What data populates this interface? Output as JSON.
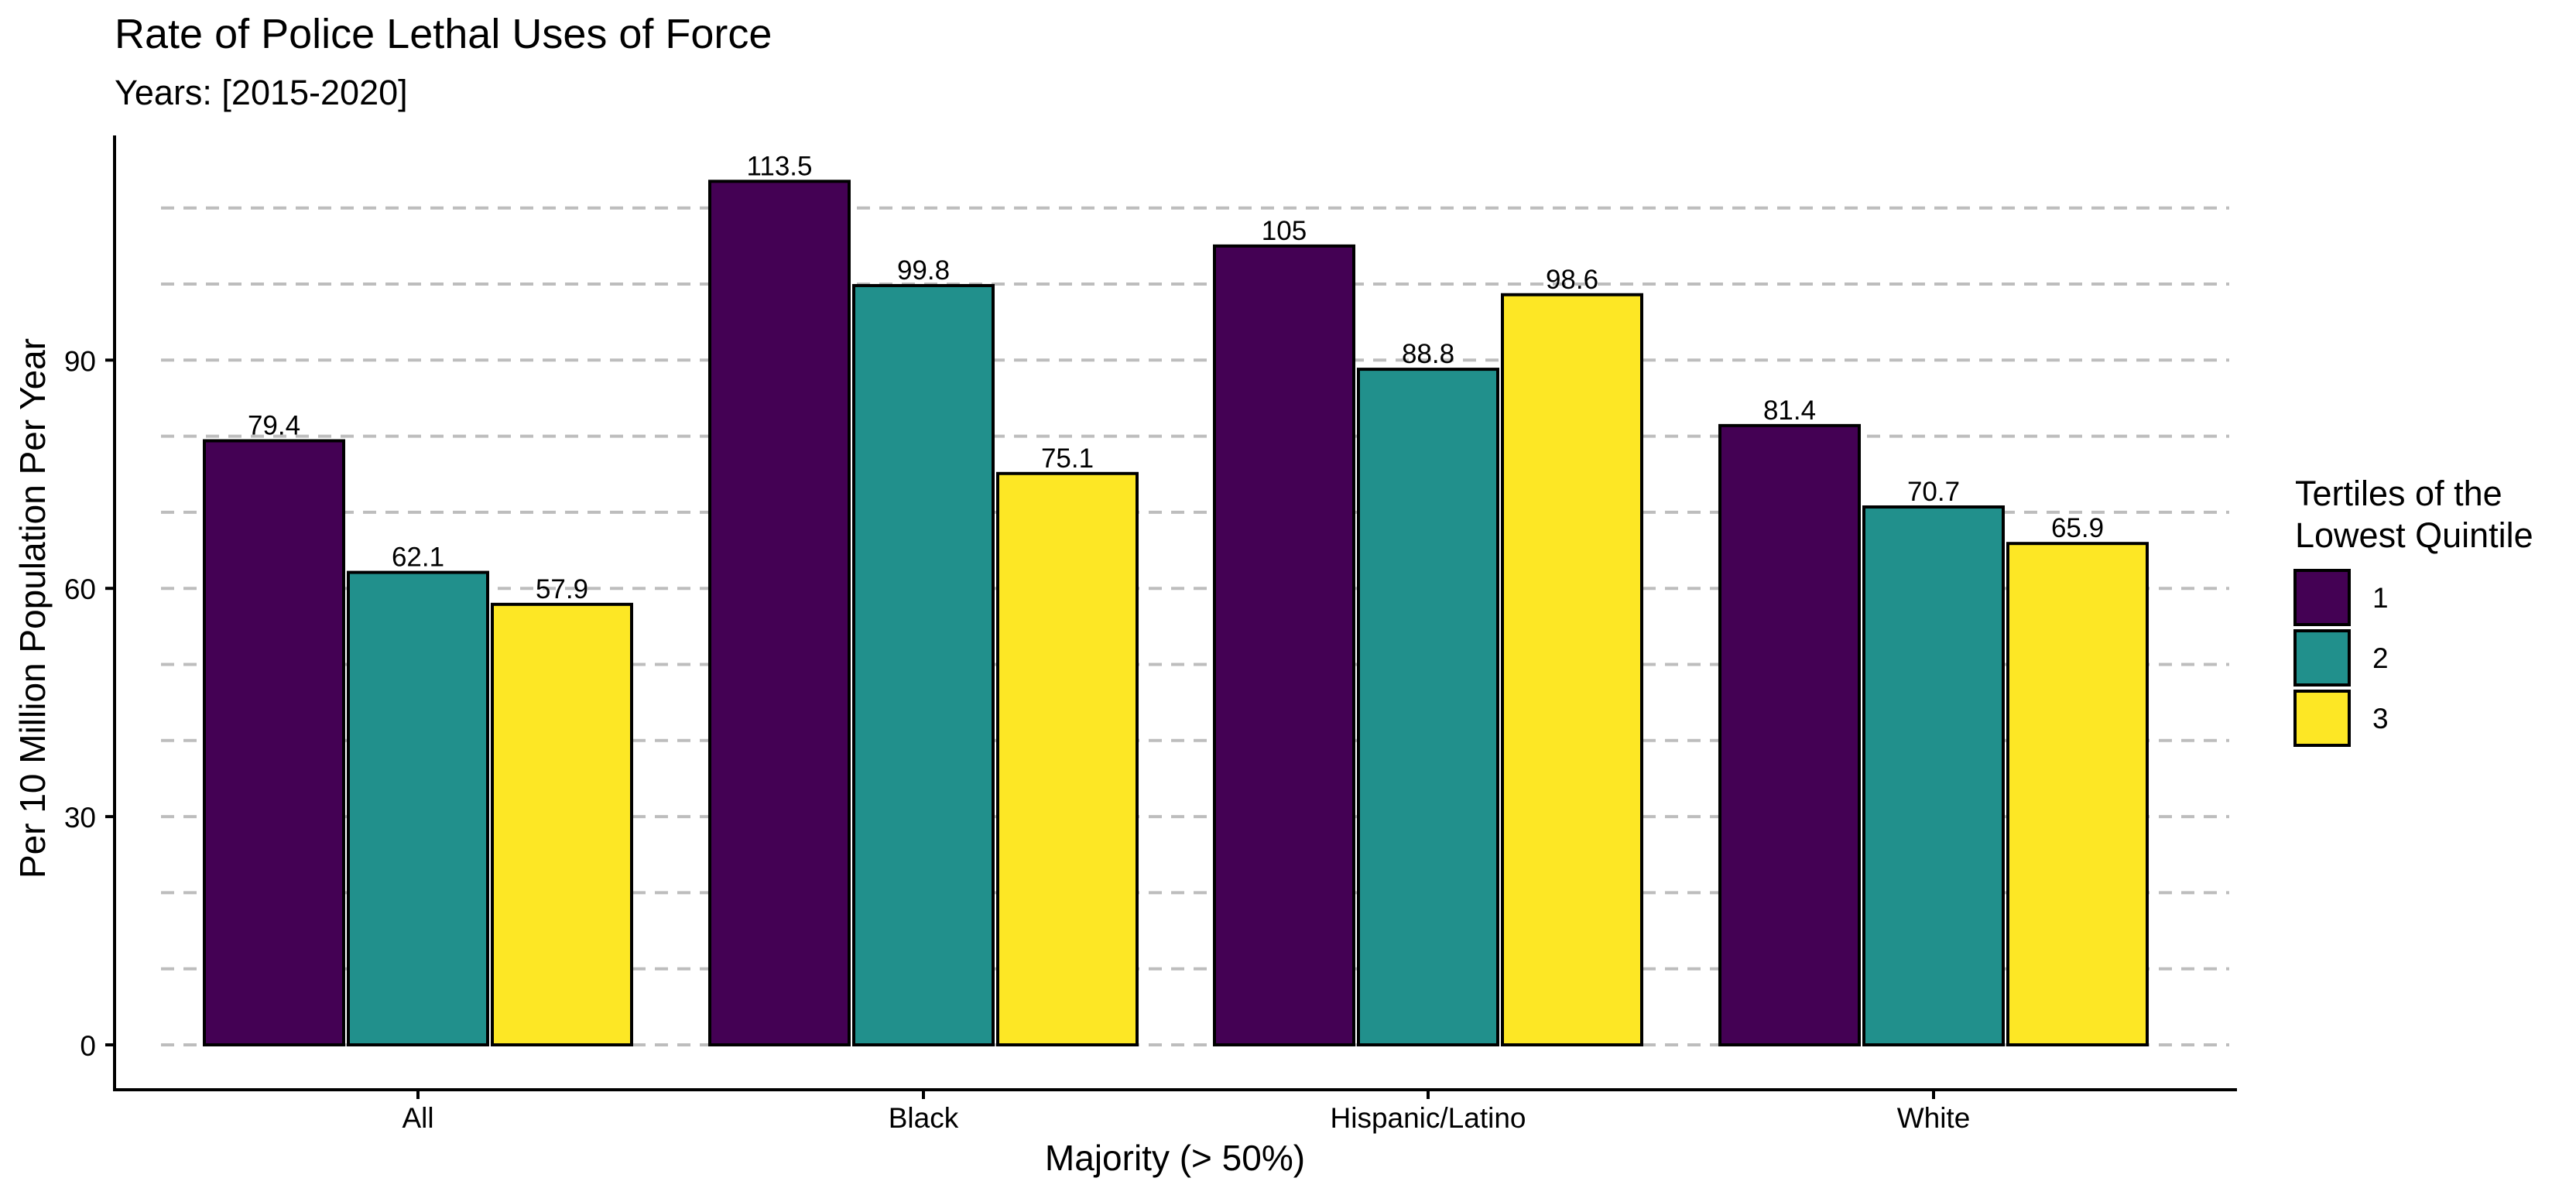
{
  "chart_data": {
    "type": "bar",
    "title": "Rate of Police Lethal Uses of Force",
    "subtitle": "Years: [2015-2020]",
    "xlabel": "Majority (> 50%)",
    "ylabel": "Per 10 Million Population Per Year",
    "ylim": [
      0,
      120
    ],
    "major_yticks": [
      0,
      30,
      60,
      90
    ],
    "minor_gridlines": [
      10,
      20,
      40,
      50,
      70,
      80,
      100,
      110
    ],
    "grid": "horizontal dashed",
    "categories": [
      "All",
      "Black",
      "Hispanic/Latino",
      "White"
    ],
    "series": [
      {
        "name": "1",
        "color": "#440154",
        "values": [
          79.4,
          113.5,
          105,
          81.4
        ],
        "labels": [
          "79.4",
          "113.5",
          "105",
          "81.4"
        ]
      },
      {
        "name": "2",
        "color": "#21908C",
        "values": [
          62.1,
          99.8,
          88.8,
          70.7
        ],
        "labels": [
          "62.1",
          "99.8",
          "88.8",
          "70.7"
        ]
      },
      {
        "name": "3",
        "color": "#FDE725",
        "values": [
          57.9,
          75.1,
          98.6,
          65.9
        ],
        "labels": [
          "57.9",
          "75.1",
          "98.6",
          "65.9"
        ]
      }
    ],
    "legend": {
      "title_line1": "Tertiles of the",
      "title_line2": "Lowest Quintile",
      "position": "right"
    }
  }
}
